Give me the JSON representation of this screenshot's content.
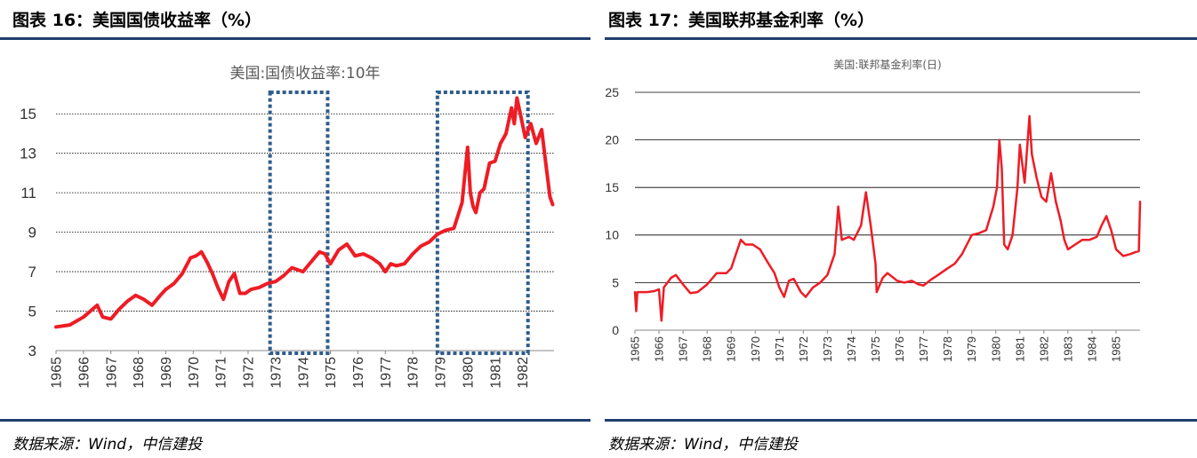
{
  "panels": {
    "left": {
      "figure_title": "图表 16：美国国债收益率（%）",
      "source": "数据来源：Wind，中信建投"
    },
    "right": {
      "figure_title": "图表 17：美国联邦基金利率（%）",
      "source": "数据来源：Wind，中信建投"
    }
  },
  "colors": {
    "series": "#ee1c25",
    "rule": "#1f3e6e",
    "highlight_box": "#2f5d8c",
    "grid": "#000000"
  },
  "chart_data": [
    {
      "type": "line",
      "title": "美国:国债收益率:10年",
      "xlabel": "",
      "ylabel": "",
      "xlim": [
        1965,
        1983.15
      ],
      "ylim": [
        3,
        16
      ],
      "y_ticks": [
        "3",
        "5",
        "7",
        "9",
        "11",
        "13",
        "15"
      ],
      "x_ticks": [
        "1965",
        "1966",
        "1967",
        "1968",
        "1969",
        "1970",
        "1971",
        "1972",
        "1973",
        "1974",
        "1975",
        "1976",
        "1977",
        "1978",
        "1979",
        "1980",
        "1981",
        "1982"
      ],
      "grid": "horizontal dotted",
      "highlights": [
        {
          "x_start": 1972.8,
          "x_end": 1974.9,
          "y_start": 3,
          "y_end": 16
        },
        {
          "x_start": 1978.9,
          "x_end": 1982.2,
          "y_start": 3,
          "y_end": 16
        }
      ],
      "series": [
        {
          "name": "美国:国债收益率:10年",
          "x": [
            1965.0,
            1965.5,
            1966.0,
            1966.5,
            1966.7,
            1967.0,
            1967.3,
            1967.6,
            1967.9,
            1968.2,
            1968.5,
            1968.8,
            1969.0,
            1969.3,
            1969.6,
            1969.9,
            1970.1,
            1970.3,
            1970.5,
            1970.7,
            1970.9,
            1971.1,
            1971.3,
            1971.5,
            1971.7,
            1971.9,
            1972.1,
            1972.4,
            1972.7,
            1973.0,
            1973.3,
            1973.6,
            1973.8,
            1974.0,
            1974.3,
            1974.6,
            1974.8,
            1975.0,
            1975.3,
            1975.6,
            1975.9,
            1976.2,
            1976.5,
            1976.8,
            1977.0,
            1977.2,
            1977.4,
            1977.7,
            1978.0,
            1978.3,
            1978.6,
            1978.9,
            1979.2,
            1979.5,
            1979.8,
            1980.0,
            1980.1,
            1980.2,
            1980.3,
            1980.45,
            1980.6,
            1980.8,
            1981.0,
            1981.2,
            1981.4,
            1981.6,
            1981.7,
            1981.8,
            1981.95,
            1982.1,
            1982.3,
            1982.5,
            1982.7,
            1982.85,
            1983.0,
            1983.1
          ],
          "values": [
            4.2,
            4.3,
            4.7,
            5.3,
            4.7,
            4.6,
            5.1,
            5.5,
            5.8,
            5.6,
            5.3,
            5.8,
            6.1,
            6.4,
            6.9,
            7.7,
            7.8,
            8.0,
            7.5,
            6.9,
            6.2,
            5.6,
            6.5,
            6.9,
            5.9,
            5.9,
            6.1,
            6.2,
            6.4,
            6.5,
            6.8,
            7.2,
            7.1,
            7.0,
            7.5,
            8.0,
            7.9,
            7.4,
            8.1,
            8.4,
            7.8,
            7.9,
            7.7,
            7.4,
            7.0,
            7.4,
            7.3,
            7.4,
            7.9,
            8.3,
            8.5,
            8.9,
            9.1,
            9.2,
            10.5,
            13.3,
            11.0,
            10.3,
            10.0,
            11.0,
            11.2,
            12.5,
            12.6,
            13.5,
            14.0,
            15.3,
            14.5,
            15.8,
            14.8,
            13.8,
            14.5,
            13.5,
            14.2,
            12.5,
            10.8,
            10.4
          ]
        }
      ]
    },
    {
      "type": "line",
      "title": "美国:联邦基金利率(日)",
      "xlabel": "",
      "ylabel": "",
      "xlim": [
        1965,
        1986
      ],
      "ylim": [
        0,
        25
      ],
      "y_ticks": [
        "0",
        "5",
        "10",
        "15",
        "20",
        "25"
      ],
      "x_ticks": [
        "1965",
        "1966",
        "1967",
        "1968",
        "1969",
        "1970",
        "1971",
        "1972",
        "1973",
        "1974",
        "1975",
        "1976",
        "1977",
        "1978",
        "1979",
        "1980",
        "1981",
        "1982",
        "1983",
        "1984",
        "1985"
      ],
      "grid": "horizontal solid",
      "series": [
        {
          "name": "美国:联邦基金利率(日)",
          "x": [
            1965.0,
            1965.05,
            1965.1,
            1965.5,
            1965.8,
            1966.0,
            1966.1,
            1966.2,
            1966.5,
            1966.7,
            1967.0,
            1967.3,
            1967.6,
            1968.0,
            1968.4,
            1968.8,
            1969.0,
            1969.2,
            1969.4,
            1969.6,
            1969.9,
            1970.2,
            1970.5,
            1970.8,
            1971.0,
            1971.2,
            1971.4,
            1971.6,
            1971.9,
            1972.1,
            1972.4,
            1972.7,
            1973.0,
            1973.3,
            1973.45,
            1973.6,
            1973.9,
            1974.1,
            1974.4,
            1974.6,
            1974.8,
            1975.0,
            1975.05,
            1975.3,
            1975.5,
            1975.9,
            1976.2,
            1976.5,
            1976.8,
            1977.0,
            1977.3,
            1977.6,
            1978.0,
            1978.3,
            1978.6,
            1979.0,
            1979.3,
            1979.6,
            1979.9,
            1980.05,
            1980.15,
            1980.25,
            1980.35,
            1980.5,
            1980.7,
            1980.9,
            1981.0,
            1981.2,
            1981.4,
            1981.5,
            1981.7,
            1981.9,
            1982.1,
            1982.3,
            1982.5,
            1982.7,
            1982.85,
            1983.0,
            1983.3,
            1983.6,
            1983.9,
            1984.2,
            1984.4,
            1984.6,
            1984.8,
            1985.0,
            1985.3,
            1985.6,
            1985.8,
            1985.95,
            1986.0
          ],
          "values": [
            4.0,
            2.0,
            4.0,
            4.0,
            4.1,
            4.3,
            1.0,
            4.5,
            5.5,
            5.8,
            4.8,
            3.9,
            4.0,
            4.8,
            6.0,
            6.0,
            6.5,
            8.0,
            9.5,
            9.0,
            9.0,
            8.5,
            7.2,
            6.0,
            4.5,
            3.5,
            5.2,
            5.4,
            4.0,
            3.5,
            4.5,
            5.0,
            5.8,
            8.0,
            13.0,
            9.5,
            9.8,
            9.5,
            11.0,
            14.5,
            11.0,
            7.0,
            4.0,
            5.5,
            6.0,
            5.2,
            5.0,
            5.2,
            4.8,
            4.7,
            5.3,
            5.8,
            6.5,
            7.0,
            8.0,
            10.0,
            10.2,
            10.5,
            13.0,
            15.0,
            20.0,
            17.0,
            9.0,
            8.5,
            10.0,
            15.0,
            19.5,
            15.5,
            22.5,
            18.5,
            16.0,
            14.0,
            13.5,
            16.5,
            13.5,
            11.5,
            9.5,
            8.5,
            9.0,
            9.5,
            9.5,
            9.8,
            11.0,
            12.0,
            10.5,
            8.5,
            7.8,
            8.0,
            8.2,
            8.3,
            13.5
          ]
        }
      ]
    }
  ]
}
